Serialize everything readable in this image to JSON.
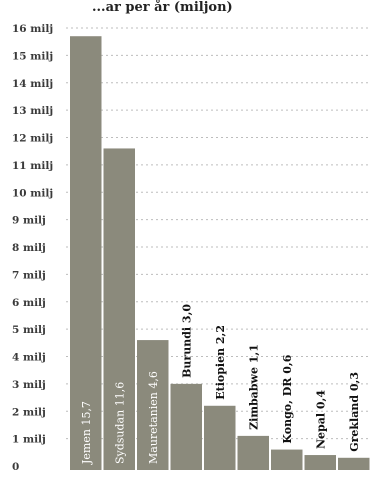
{
  "chart_data": {
    "type": "bar",
    "title": "...ar per år (miljon)",
    "categories": [
      "Jemen",
      "Sydsudan",
      "Mauretanien",
      "Burundi",
      "Etiopien",
      "Zimbabwe",
      "Kongo, DR",
      "Nepal",
      "Grekland"
    ],
    "values": [
      15.7,
      11.6,
      4.6,
      3.0,
      2.2,
      1.1,
      0.6,
      0.4,
      0.3
    ],
    "value_labels": [
      "15,7",
      "11,6",
      "4,6",
      "3,0",
      "2,2",
      "1,1",
      "0,6",
      "0,4",
      "0,3"
    ],
    "yticks": [
      0,
      1,
      2,
      3,
      4,
      5,
      6,
      7,
      8,
      9,
      10,
      11,
      12,
      13,
      14,
      15,
      16
    ],
    "ytick_labels": [
      "0",
      "1 milj",
      "2 milj",
      "3 milj",
      "4 milj",
      "5 milj",
      "6 milj",
      "7 milj",
      "8 milj",
      "9 milj",
      "10 milj",
      "11 milj",
      "12 milj",
      "13 milj",
      "14 milj",
      "15 milj",
      "16 milj"
    ],
    "ylim": [
      0,
      16
    ],
    "xlabel": "",
    "ylabel": "",
    "grid": true,
    "bar_color": "#8b8a7c",
    "inside_label_threshold": 4.5
  }
}
